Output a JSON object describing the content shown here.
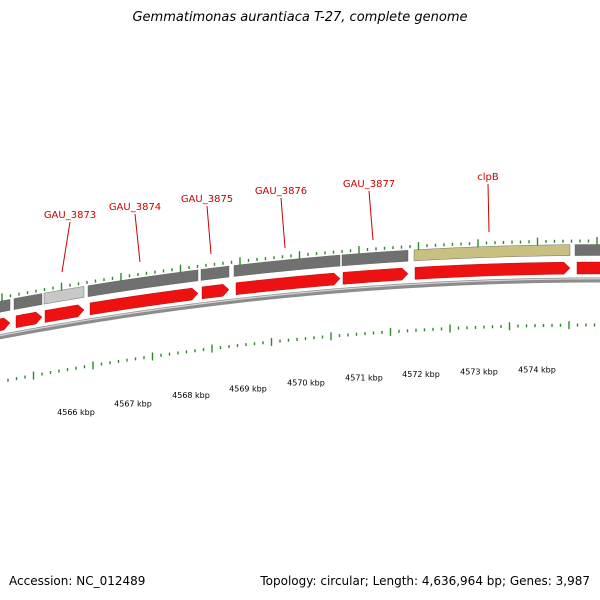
{
  "title": "Gemmatimonas aurantiaca T-27, complete genome",
  "footer": {
    "accession": "Accession: NC_012489",
    "summary": "Topology: circular; Length: 4,636,964 bp; Genes: 3,987"
  },
  "colors": {
    "label": "#cc0000",
    "cds": "#ee1111",
    "gene": "#707070",
    "gene_light": "#c8c8c8",
    "gene_highlight": "#c8c080",
    "tick": "#2a8a2a",
    "backbone": "#8c8c8c"
  },
  "gene_labels": [
    {
      "text": "GAU_3873"
    },
    {
      "text": "GAU_3874"
    },
    {
      "text": "GAU_3875"
    },
    {
      "text": "GAU_3876"
    },
    {
      "text": "GAU_3877"
    },
    {
      "text": "clpB"
    }
  ],
  "kbp_labels": [
    {
      "text": "4566 kbp"
    },
    {
      "text": "4567 kbp"
    },
    {
      "text": "4568 kbp"
    },
    {
      "text": "4569 kbp"
    },
    {
      "text": "4570 kbp"
    },
    {
      "text": "4571 kbp"
    },
    {
      "text": "4572 kbp"
    },
    {
      "text": "4573 kbp"
    },
    {
      "text": "4574 kbp"
    }
  ]
}
